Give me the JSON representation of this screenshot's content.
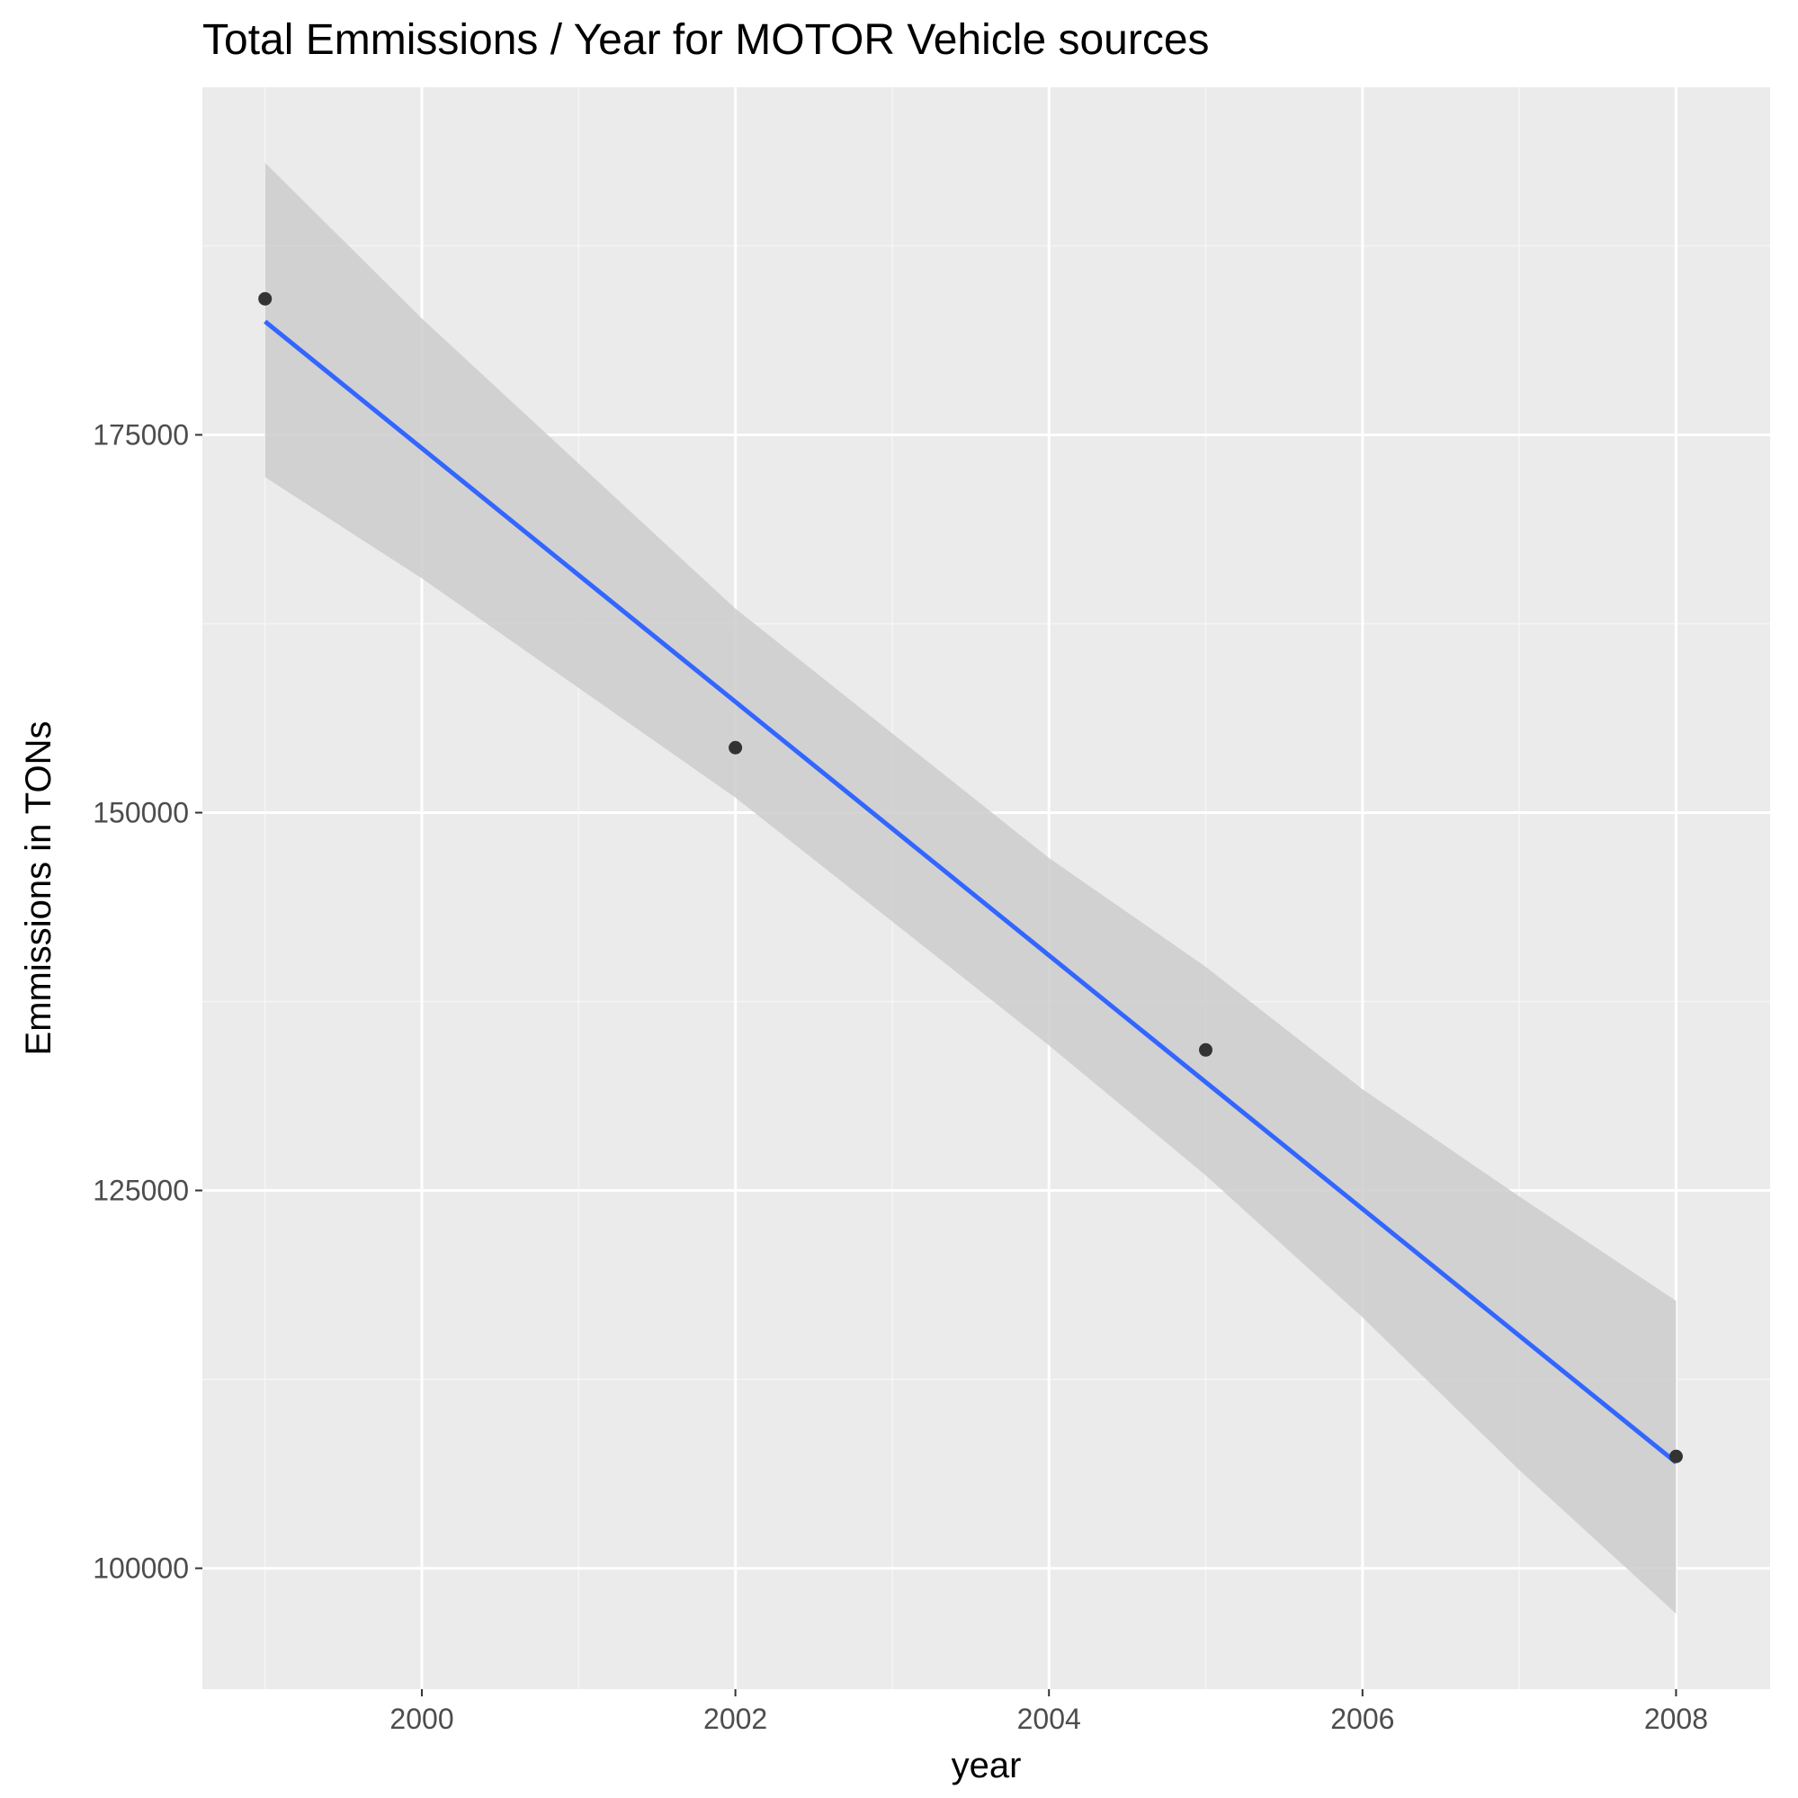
{
  "chart_data": {
    "type": "scatter",
    "title": "Total Emmissions / Year for MOTOR Vehicle sources",
    "xlabel": "year",
    "ylabel": "Emmissions in TONs",
    "xlim": [
      1998.6,
      2008.6
    ],
    "ylim": [
      92000,
      198000
    ],
    "x_ticks": [
      2000,
      2002,
      2004,
      2006,
      2008
    ],
    "y_ticks": [
      100000,
      125000,
      150000,
      175000
    ],
    "grid": true,
    "series": [
      {
        "type": "points",
        "x": [
          1999,
          2002,
          2005,
          2008
        ],
        "y": [
          184000,
          154300,
          134300,
          107400
        ],
        "color": "#333333"
      },
      {
        "type": "smooth-linear",
        "x": [
          1999,
          2008
        ],
        "y": [
          182500,
          107000
        ],
        "ci_x": [
          1999,
          2000,
          2002,
          2004,
          2005,
          2006,
          2007,
          2008
        ],
        "ci_upper": [
          193000,
          182700,
          163500,
          147000,
          139800,
          131700,
          124600,
          117700
        ],
        "ci_lower": [
          172200,
          165500,
          151000,
          134600,
          126000,
          116600,
          106500,
          97000
        ],
        "color": "#3366ff",
        "ci_color": "#cccccc"
      }
    ],
    "colors": {
      "panel_background": "#ebebeb",
      "grid_major": "#ffffff",
      "grid_minor": "#f5f5f5"
    }
  }
}
